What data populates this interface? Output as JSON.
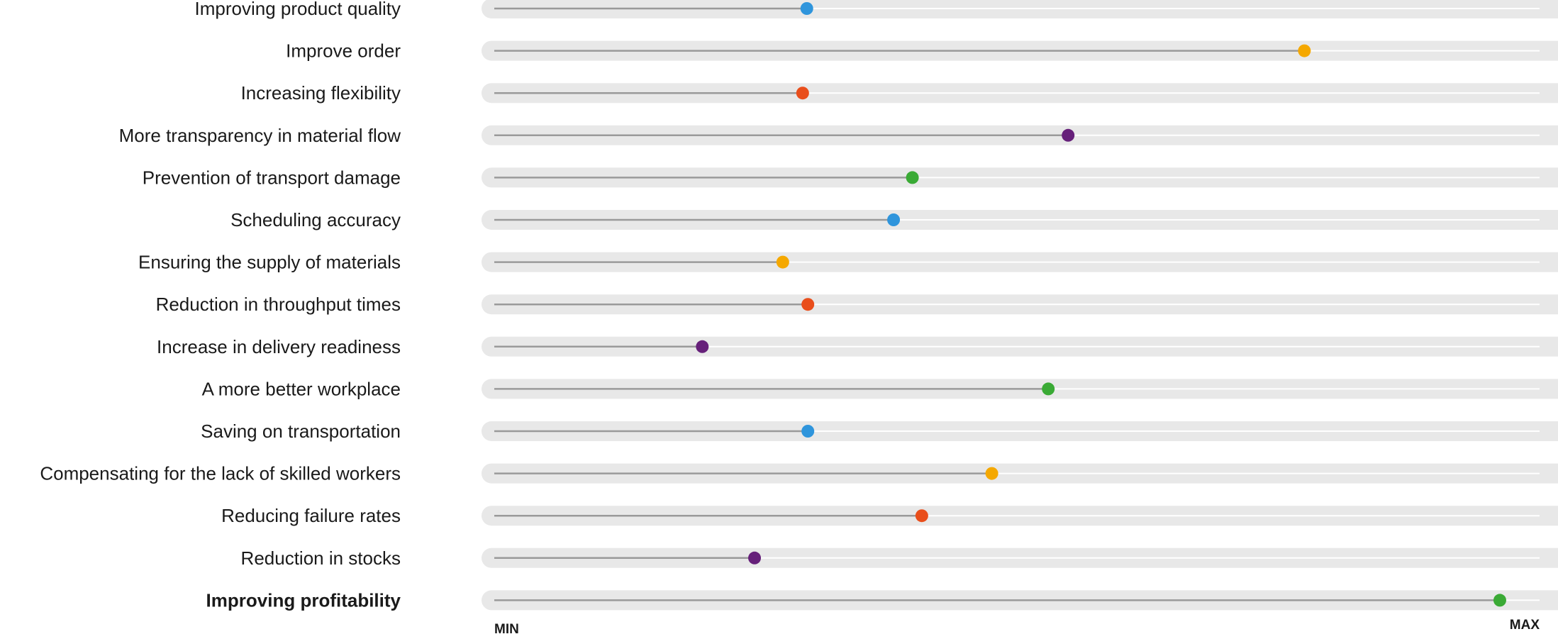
{
  "chart_data": {
    "type": "dot-slider",
    "scale": {
      "min": 0,
      "max": 100
    },
    "axis_labels": {
      "min": "MIN",
      "max": "MAX"
    },
    "rows": [
      {
        "label": "Improving product quality",
        "value": 29.9,
        "color": "#2f95dc",
        "bold": false
      },
      {
        "label": "Improve order",
        "value": 77.5,
        "color": "#f5a800",
        "bold": false
      },
      {
        "label": "Increasing flexibility",
        "value": 29.5,
        "color": "#e94e1b",
        "bold": false
      },
      {
        "label": "More transparency in material flow",
        "value": 54.9,
        "color": "#66207a",
        "bold": false
      },
      {
        "label": "Prevention of transport damage",
        "value": 40.0,
        "color": "#3aaa35",
        "bold": false
      },
      {
        "label": "Scheduling accuracy",
        "value": 38.2,
        "color": "#2f95dc",
        "bold": false
      },
      {
        "label": "Ensuring the supply of materials",
        "value": 27.6,
        "color": "#f5a800",
        "bold": false
      },
      {
        "label": "Reduction in throughput times",
        "value": 30.0,
        "color": "#e94e1b",
        "bold": false
      },
      {
        "label": "Increase in delivery readiness",
        "value": 19.9,
        "color": "#66207a",
        "bold": false
      },
      {
        "label": "A more better workplace",
        "value": 53.0,
        "color": "#3aaa35",
        "bold": false
      },
      {
        "label": "Saving on transportation",
        "value": 30.0,
        "color": "#2f95dc",
        "bold": false
      },
      {
        "label": "Compensating for the lack of skilled workers",
        "value": 47.6,
        "color": "#f5a800",
        "bold": false
      },
      {
        "label": "Reducing failure rates",
        "value": 40.9,
        "color": "#e94e1b",
        "bold": false
      },
      {
        "label": "Reduction in stocks",
        "value": 24.9,
        "color": "#66207a",
        "bold": false
      },
      {
        "label": "Improving profitability",
        "value": 96.2,
        "color": "#3aaa35",
        "bold": true
      }
    ],
    "colors": {
      "track": "#e8e8e8",
      "baseline": "#ffffff",
      "filled_line": "#9a9a9a"
    }
  }
}
